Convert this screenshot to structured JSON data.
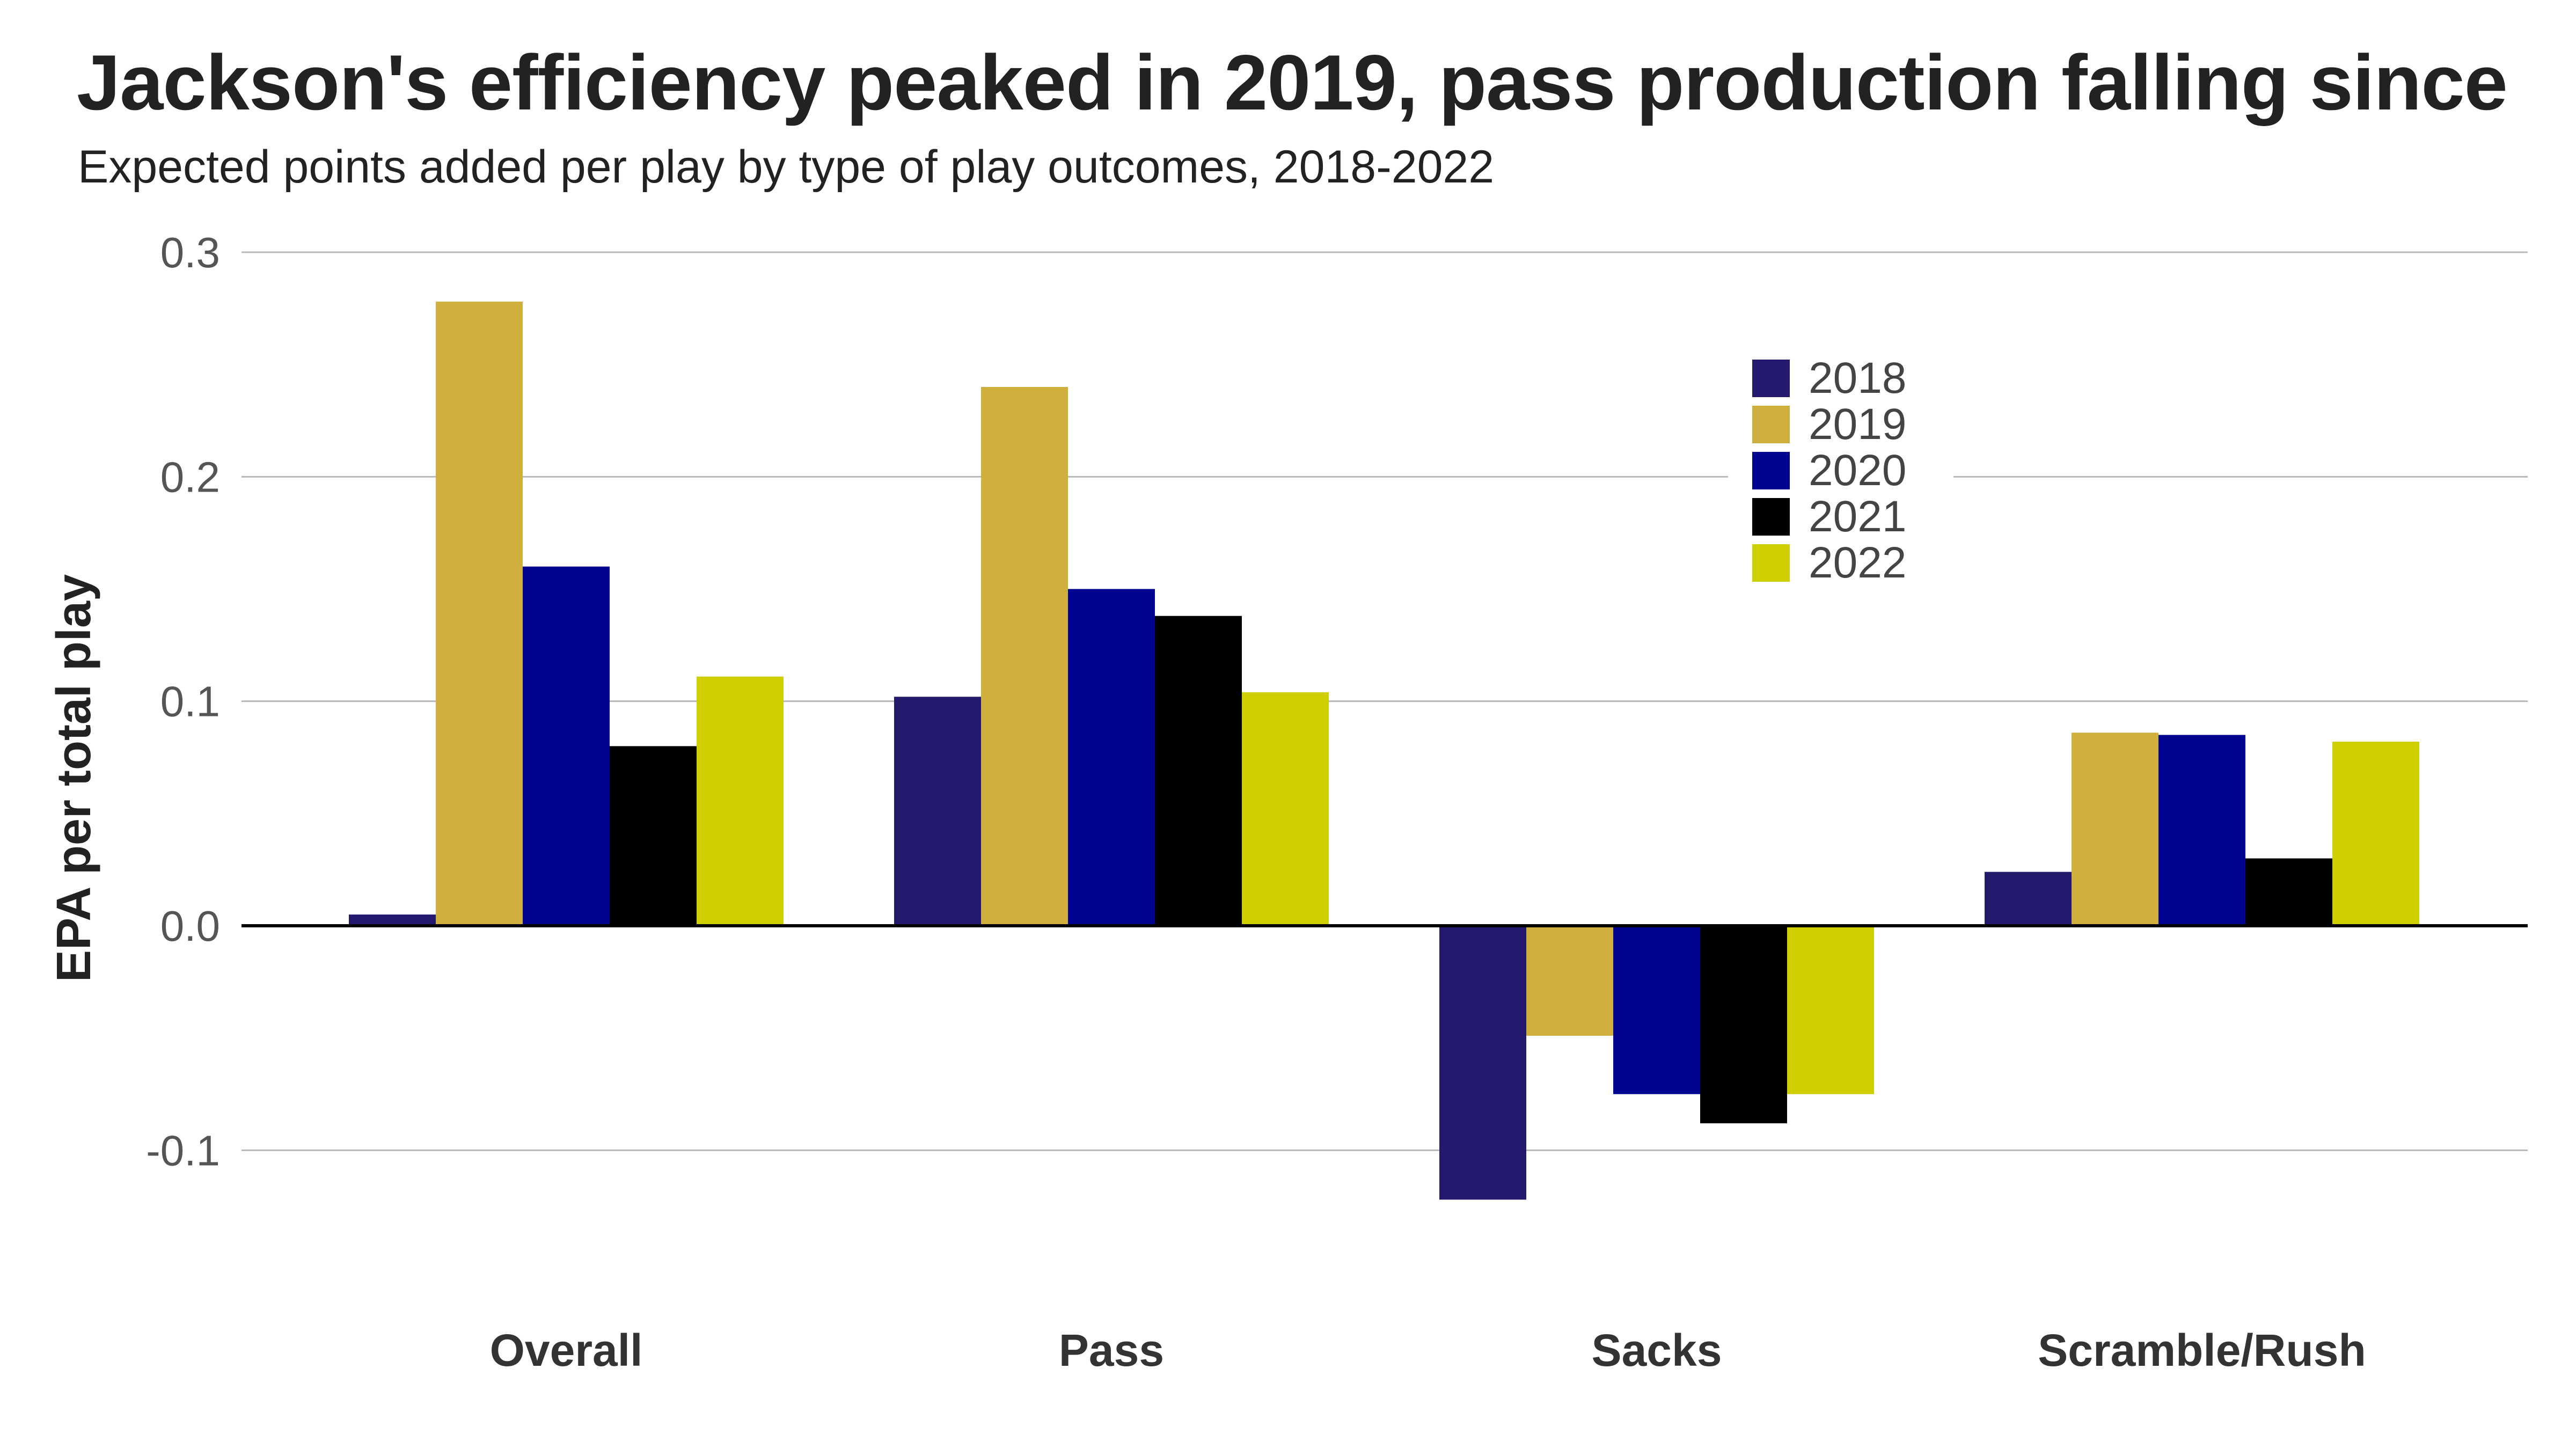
{
  "chart_data": {
    "type": "bar",
    "title": "Jackson's efficiency peaked in 2019, pass production falling since",
    "subtitle": "Expected points added per play by type of play outcomes, 2018-2022",
    "xlabel": "",
    "ylabel": "EPA per total play",
    "ylim": [
      -0.12,
      0.3
    ],
    "yticks": [
      0.3,
      0.2,
      0.1,
      0.0,
      -0.1
    ],
    "ytick_labels": [
      "0.3",
      "0.2",
      "0.1",
      "0.0",
      "-0.1"
    ],
    "grid": true,
    "legend_position": "top-right",
    "categories": [
      "Overall",
      "Pass",
      "Sacks",
      "Scramble/Rush"
    ],
    "series": [
      {
        "name": "2018",
        "color": "#231a6e",
        "values": [
          0.005,
          0.102,
          -0.122,
          0.024
        ]
      },
      {
        "name": "2019",
        "color": "#cfb03f",
        "values": [
          0.278,
          0.24,
          -0.049,
          0.086
        ]
      },
      {
        "name": "2020",
        "color": "#000491",
        "values": [
          0.16,
          0.15,
          -0.075,
          0.085
        ]
      },
      {
        "name": "2021",
        "color": "#000000",
        "values": [
          0.08,
          0.138,
          -0.088,
          0.03
        ]
      },
      {
        "name": "2022",
        "color": "#cfcf00",
        "values": [
          0.111,
          0.104,
          -0.075,
          0.082
        ]
      }
    ]
  }
}
